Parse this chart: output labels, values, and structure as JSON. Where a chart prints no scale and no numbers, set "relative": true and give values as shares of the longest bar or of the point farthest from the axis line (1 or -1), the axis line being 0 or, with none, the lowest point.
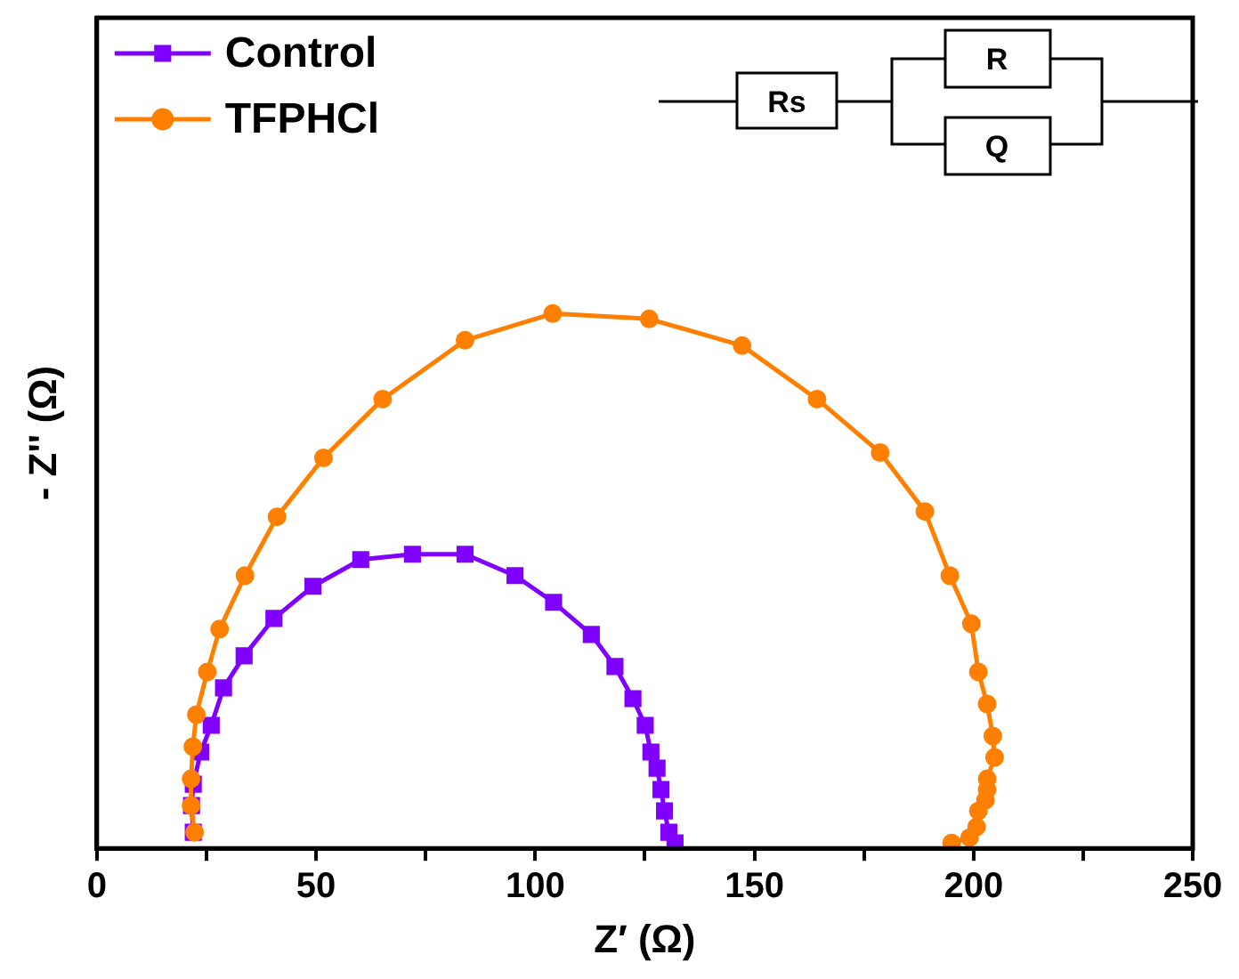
{
  "chart_data": {
    "type": "line",
    "relative": true,
    "xlabel": "Z′ (Ω)",
    "ylabel": "- Z'' (Ω)",
    "xlim": [
      0,
      250
    ],
    "xticks": [
      0,
      {
        "value": 25,
        "label": null
      },
      50,
      {
        "value": 75,
        "label": null
      },
      100,
      {
        "value": 125,
        "label": null
      },
      150,
      {
        "value": 175,
        "label": null
      },
      200,
      {
        "value": 225,
        "label": null
      },
      250
    ],
    "legend": "top left",
    "grid": false,
    "annotations": [
      "Rs",
      "R",
      "Q"
    ],
    "series": [
      {
        "name": "Control",
        "color": "#7f00ff",
        "marker": "square",
        "x": [
          22.0,
          21.6,
          22.0,
          23.7,
          26.1,
          28.9,
          33.6,
          40.4,
          49.3,
          60.2,
          72.0,
          84.0,
          95.4,
          104.2,
          112.8,
          118.2,
          122.3,
          125.1,
          126.4,
          127.8,
          128.7,
          129.5,
          130.5,
          131.9
        ],
        "values": [
          0.03,
          0.08,
          0.12,
          0.18,
          0.23,
          0.3,
          0.36,
          0.43,
          0.49,
          0.54,
          0.55,
          0.55,
          0.51,
          0.46,
          0.4,
          0.34,
          0.28,
          0.23,
          0.18,
          0.15,
          0.11,
          0.07,
          0.03,
          0.01
        ]
      },
      {
        "name": "TFPHCl",
        "color": "#ff8000",
        "marker": "circle",
        "x": [
          22.3,
          21.5,
          21.5,
          21.9,
          22.7,
          25.2,
          28.0,
          33.8,
          41.1,
          51.7,
          65.2,
          84.0,
          104.0,
          126.0,
          147.2,
          164.3,
          178.7,
          188.9,
          194.6,
          199.5,
          201.1,
          203.1,
          204.4,
          204.8,
          203.1,
          203.1,
          202.7,
          201.1,
          200.7,
          199.1,
          195.0
        ],
        "values": [
          0.03,
          0.08,
          0.13,
          0.19,
          0.25,
          0.33,
          0.41,
          0.51,
          0.62,
          0.73,
          0.84,
          0.95,
          1.0,
          0.99,
          0.94,
          0.84,
          0.74,
          0.63,
          0.51,
          0.42,
          0.33,
          0.27,
          0.21,
          0.17,
          0.13,
          0.11,
          0.09,
          0.07,
          0.04,
          0.02,
          0.01
        ]
      }
    ]
  }
}
